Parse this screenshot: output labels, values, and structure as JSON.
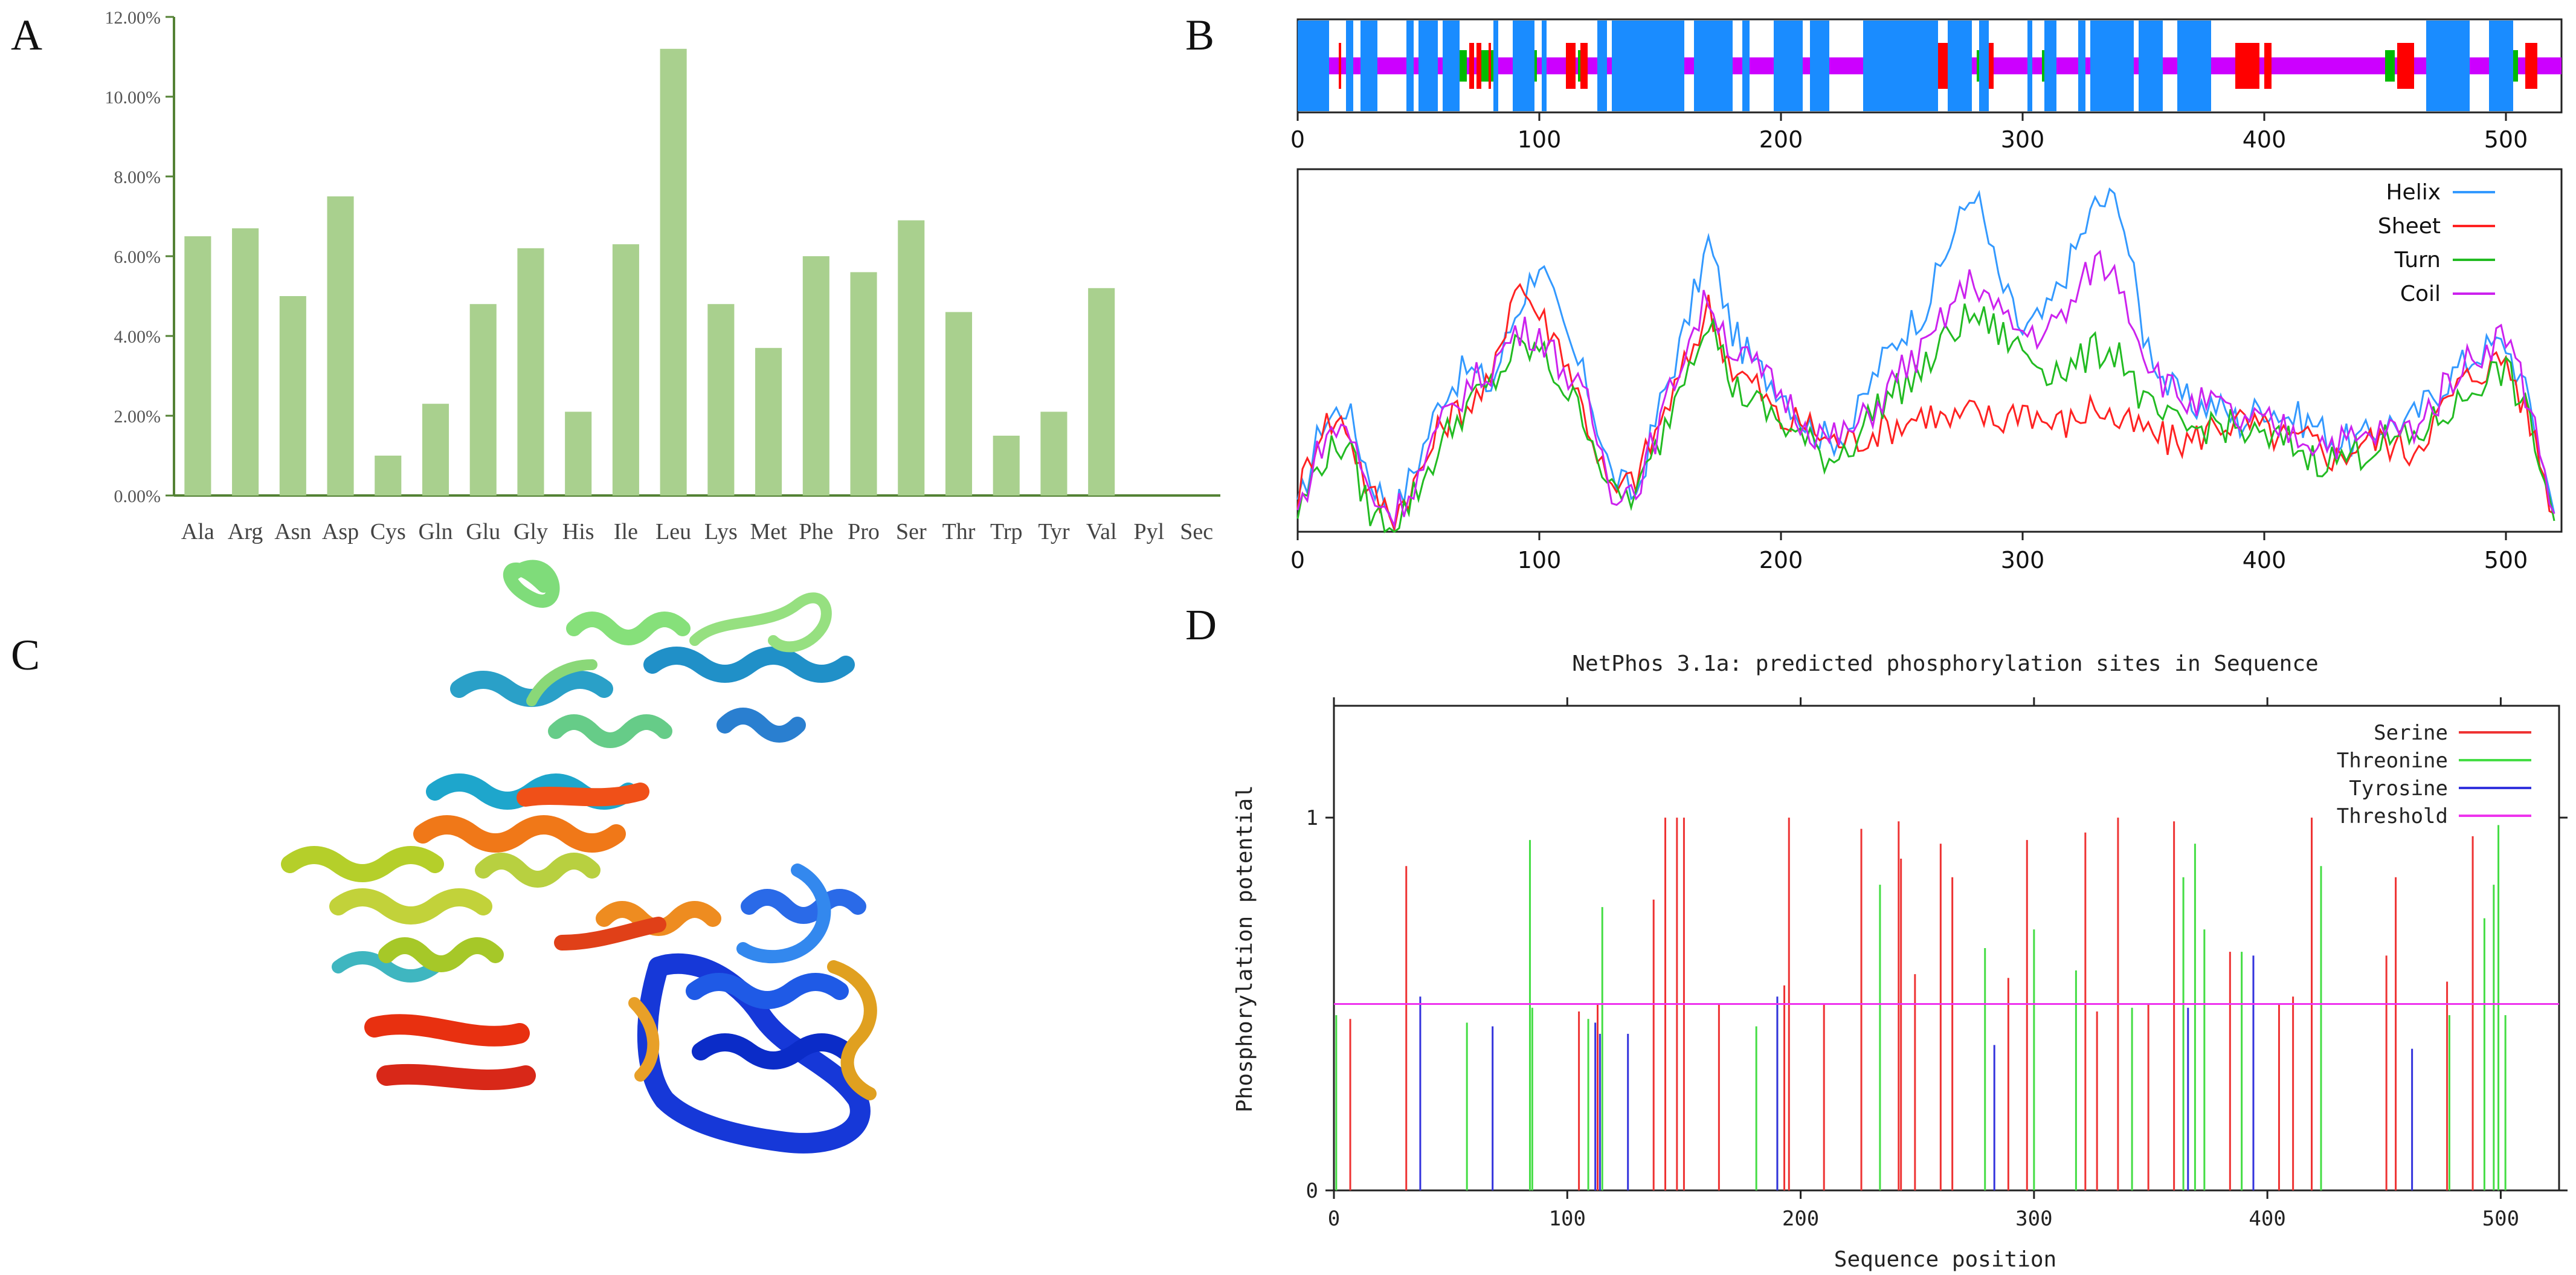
{
  "panels": {
    "a": "A",
    "b": "B",
    "c": "C",
    "d": "D"
  },
  "chart_data": [
    {
      "id": "A",
      "type": "bar",
      "title": "",
      "xlabel": "",
      "ylabel": "",
      "categories": [
        "Ala",
        "Arg",
        "Asn",
        "Asp",
        "Cys",
        "Gln",
        "Glu",
        "Gly",
        "His",
        "Ile",
        "Leu",
        "Lys",
        "Met",
        "Phe",
        "Pro",
        "Ser",
        "Thr",
        "Trp",
        "Tyr",
        "Val",
        "Pyl",
        "Sec"
      ],
      "values": [
        6.5,
        6.7,
        5.0,
        7.5,
        1.0,
        2.3,
        4.8,
        6.2,
        2.1,
        6.3,
        11.2,
        4.8,
        3.7,
        6.0,
        5.6,
        6.9,
        4.6,
        1.5,
        2.1,
        5.2,
        0,
        0
      ],
      "ylim": [
        0,
        12
      ],
      "yticks": [
        0,
        2,
        4,
        6,
        8,
        10,
        12
      ],
      "ytick_labels": [
        "0.00%",
        "2.00%",
        "4.00%",
        "6.00%",
        "8.00%",
        "10.00%",
        "12.00%"
      ],
      "color": "#a9d08e",
      "grid": false
    },
    {
      "id": "B",
      "type": "line",
      "title": "",
      "xlim": [
        0,
        523
      ],
      "xticks": [
        0,
        100,
        200,
        300,
        400,
        500
      ],
      "xtick_labels": [
        "0",
        "100",
        "200",
        "300",
        "400",
        "500"
      ],
      "track": {
        "helix_segments": [
          [
            0,
            13
          ],
          [
            20,
            23
          ],
          [
            26,
            33
          ],
          [
            45,
            48
          ],
          [
            50,
            58
          ],
          [
            60,
            67
          ],
          [
            81,
            83
          ],
          [
            89,
            98
          ],
          [
            101,
            103
          ],
          [
            124,
            128
          ],
          [
            130,
            160
          ],
          [
            164,
            180
          ],
          [
            184,
            187
          ],
          [
            197,
            209
          ],
          [
            212,
            220
          ],
          [
            234,
            265
          ],
          [
            269,
            279
          ],
          [
            282,
            286
          ],
          [
            302,
            304
          ],
          [
            309,
            314
          ],
          [
            323,
            326
          ],
          [
            328,
            346
          ],
          [
            348,
            358
          ],
          [
            364,
            376
          ],
          [
            373,
            378
          ],
          [
            467,
            485
          ],
          [
            493,
            503
          ]
        ],
        "sheet_segments": [
          [
            17,
            18
          ],
          [
            20,
            21
          ],
          [
            71,
            73
          ],
          [
            74,
            76
          ],
          [
            79,
            80
          ],
          [
            111,
            115
          ],
          [
            117,
            120
          ],
          [
            170,
            172
          ],
          [
            259,
            262
          ],
          [
            264,
            270
          ],
          [
            286,
            288
          ],
          [
            329,
            330
          ],
          [
            388,
            393
          ],
          [
            391,
            398
          ],
          [
            400,
            403
          ],
          [
            455,
            458
          ],
          [
            458,
            462
          ],
          [
            482,
            484
          ],
          [
            508,
            513
          ]
        ],
        "turn_segments": [
          [
            3,
            8
          ],
          [
            63,
            70
          ],
          [
            75,
            82
          ],
          [
            93,
            99
          ],
          [
            116,
            118
          ],
          [
            258,
            260
          ],
          [
            281,
            283
          ],
          [
            308,
            311
          ],
          [
            450,
            454
          ],
          [
            502,
            505
          ]
        ],
        "coil_color": "#cc00ff",
        "helix_color": "#1a8cff",
        "sheet_color": "#ff0000",
        "turn_color": "#00bb00"
      },
      "series": [
        {
          "name": "Helix",
          "color": "#3399ff",
          "x": [
            0,
            10,
            20,
            30,
            40,
            50,
            60,
            70,
            80,
            90,
            100,
            110,
            120,
            130,
            140,
            150,
            160,
            170,
            180,
            190,
            200,
            210,
            220,
            230,
            240,
            250,
            260,
            270,
            280,
            290,
            300,
            310,
            320,
            330,
            340,
            350,
            360,
            370,
            380,
            390,
            400,
            410,
            420,
            430,
            440,
            450,
            460,
            470,
            480,
            490,
            500,
            510,
            520
          ],
          "y": [
            0.05,
            0.3,
            0.35,
            0.15,
            0.05,
            0.2,
            0.38,
            0.45,
            0.4,
            0.6,
            0.75,
            0.55,
            0.4,
            0.15,
            0.1,
            0.35,
            0.55,
            0.8,
            0.55,
            0.45,
            0.4,
            0.3,
            0.25,
            0.3,
            0.45,
            0.55,
            0.62,
            0.8,
            0.95,
            0.7,
            0.55,
            0.6,
            0.75,
            0.9,
            0.92,
            0.55,
            0.4,
            0.35,
            0.35,
            0.3,
            0.35,
            0.32,
            0.3,
            0.25,
            0.25,
            0.3,
            0.3,
            0.38,
            0.45,
            0.5,
            0.52,
            0.35,
            0.05
          ]
        },
        {
          "name": "Sheet",
          "color": "#ff2222",
          "x": [
            0,
            10,
            20,
            30,
            40,
            50,
            60,
            70,
            80,
            90,
            100,
            110,
            120,
            130,
            140,
            150,
            160,
            170,
            180,
            190,
            200,
            210,
            220,
            230,
            240,
            250,
            260,
            270,
            280,
            290,
            300,
            310,
            320,
            330,
            340,
            350,
            360,
            370,
            380,
            390,
            400,
            410,
            420,
            430,
            440,
            450,
            460,
            470,
            480,
            490,
            500,
            510,
            520
          ],
          "y": [
            0.1,
            0.3,
            0.3,
            0.1,
            0.05,
            0.15,
            0.3,
            0.35,
            0.4,
            0.7,
            0.6,
            0.5,
            0.3,
            0.1,
            0.15,
            0.3,
            0.45,
            0.62,
            0.45,
            0.4,
            0.3,
            0.3,
            0.25,
            0.25,
            0.28,
            0.3,
            0.33,
            0.3,
            0.33,
            0.3,
            0.35,
            0.3,
            0.3,
            0.35,
            0.3,
            0.28,
            0.25,
            0.25,
            0.3,
            0.3,
            0.28,
            0.25,
            0.25,
            0.2,
            0.25,
            0.25,
            0.22,
            0.3,
            0.4,
            0.45,
            0.48,
            0.3,
            0.05
          ]
        },
        {
          "name": "Turn",
          "color": "#22bb22",
          "x": [
            0,
            10,
            20,
            30,
            40,
            50,
            60,
            70,
            80,
            90,
            100,
            110,
            120,
            130,
            140,
            150,
            160,
            170,
            180,
            190,
            200,
            210,
            220,
            230,
            240,
            250,
            260,
            270,
            280,
            290,
            300,
            310,
            320,
            330,
            340,
            350,
            360,
            370,
            380,
            390,
            400,
            410,
            420,
            430,
            440,
            450,
            460,
            470,
            480,
            490,
            500,
            510,
            520
          ],
          "y": [
            0.05,
            0.2,
            0.25,
            0.05,
            0.02,
            0.12,
            0.25,
            0.35,
            0.4,
            0.5,
            0.5,
            0.4,
            0.3,
            0.1,
            0.1,
            0.25,
            0.45,
            0.6,
            0.4,
            0.35,
            0.3,
            0.25,
            0.2,
            0.25,
            0.35,
            0.4,
            0.45,
            0.55,
            0.6,
            0.55,
            0.5,
            0.45,
            0.45,
            0.5,
            0.5,
            0.35,
            0.3,
            0.28,
            0.3,
            0.28,
            0.25,
            0.25,
            0.2,
            0.2,
            0.22,
            0.25,
            0.25,
            0.3,
            0.35,
            0.42,
            0.45,
            0.3,
            0.03
          ]
        },
        {
          "name": "Coil",
          "color": "#cc22ee",
          "x": [
            0,
            10,
            20,
            30,
            40,
            50,
            60,
            70,
            80,
            90,
            100,
            110,
            120,
            130,
            140,
            150,
            160,
            170,
            180,
            190,
            200,
            210,
            220,
            230,
            240,
            250,
            260,
            270,
            280,
            290,
            300,
            310,
            320,
            330,
            340,
            350,
            360,
            370,
            380,
            390,
            400,
            410,
            420,
            430,
            440,
            450,
            460,
            470,
            480,
            490,
            500,
            510,
            520
          ],
          "y": [
            0.05,
            0.25,
            0.3,
            0.1,
            0.05,
            0.15,
            0.3,
            0.4,
            0.45,
            0.55,
            0.55,
            0.45,
            0.35,
            0.12,
            0.12,
            0.3,
            0.5,
            0.65,
            0.5,
            0.45,
            0.38,
            0.3,
            0.25,
            0.28,
            0.35,
            0.45,
            0.5,
            0.62,
            0.7,
            0.6,
            0.55,
            0.55,
            0.62,
            0.75,
            0.7,
            0.5,
            0.4,
            0.35,
            0.35,
            0.3,
            0.3,
            0.28,
            0.25,
            0.25,
            0.25,
            0.28,
            0.28,
            0.35,
            0.45,
            0.5,
            0.55,
            0.35,
            0.05
          ]
        }
      ],
      "legend_position": "top-right"
    },
    {
      "id": "D",
      "type": "bar",
      "title": "NetPhos 3.1a: predicted phosphorylation sites in Sequence",
      "xlabel": "Sequence position",
      "ylabel": "Phosphorylation potential",
      "xlim": [
        0,
        525
      ],
      "ylim": [
        0,
        1.3
      ],
      "xticks": [
        0,
        100,
        200,
        300,
        400,
        500
      ],
      "xtick_labels": [
        "0",
        "100",
        "200",
        "300",
        "400",
        "500"
      ],
      "yticks": [
        0,
        1
      ],
      "ytick_labels": [
        "0",
        "1"
      ],
      "threshold": 0.5,
      "legend_position": "top-right",
      "series": [
        {
          "name": "Serine",
          "color": "#ee3333",
          "x": [
            7,
            31,
            105,
            113,
            137,
            142,
            147,
            150,
            165,
            193,
            195,
            210,
            226,
            242,
            243,
            249,
            260,
            265,
            289,
            297,
            322,
            327,
            336,
            349,
            360,
            384,
            405,
            411,
            419,
            451,
            455,
            477,
            488
          ],
          "y": [
            0.46,
            0.87,
            0.48,
            0.5,
            0.78,
            1.0,
            1.0,
            1.0,
            0.5,
            0.55,
            1.0,
            0.5,
            0.97,
            0.99,
            0.89,
            0.58,
            0.93,
            0.84,
            0.57,
            0.94,
            0.96,
            0.48,
            1.0,
            0.5,
            0.99,
            0.64,
            0.5,
            0.52,
            1.0,
            0.63,
            0.84,
            0.56,
            0.95
          ]
        },
        {
          "name": "Threonine",
          "color": "#44dd44",
          "x": [
            1,
            57,
            84,
            85,
            109,
            115,
            181,
            190,
            234,
            279,
            300,
            318,
            342,
            364,
            369,
            373,
            389,
            423,
            478,
            493,
            497,
            499,
            502
          ],
          "y": [
            0.47,
            0.45,
            0.94,
            0.49,
            0.46,
            0.76,
            0.44,
            0.5,
            0.82,
            0.65,
            0.7,
            0.59,
            0.49,
            0.84,
            0.93,
            0.7,
            0.64,
            0.87,
            0.47,
            0.73,
            0.82,
            0.98,
            0.47
          ]
        },
        {
          "name": "Tyrosine",
          "color": "#3333dd",
          "x": [
            37,
            68,
            112,
            114,
            126,
            190,
            283,
            366,
            394,
            462
          ],
          "y": [
            0.52,
            0.44,
            0.45,
            0.42,
            0.42,
            0.52,
            0.39,
            0.49,
            0.63,
            0.38
          ]
        },
        {
          "name": "Threshold",
          "color": "#ee33ee"
        }
      ]
    }
  ]
}
